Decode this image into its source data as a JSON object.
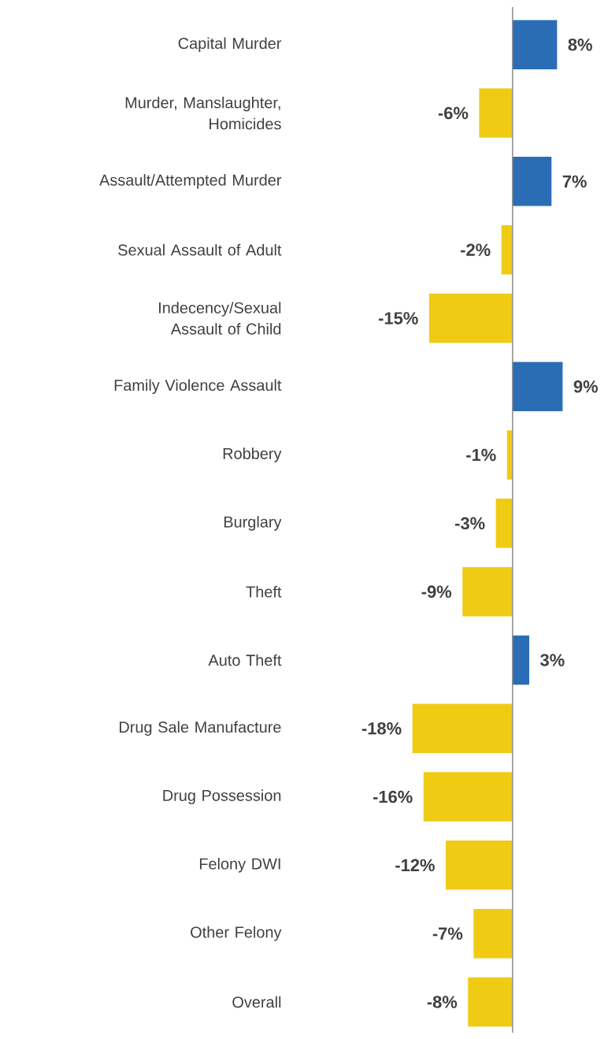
{
  "chart_data": {
    "type": "bar",
    "orientation": "horizontal",
    "categories": [
      "Capital Murder",
      "Murder, Manslaughter, Homicides",
      "Assault/Attempted Murder",
      "Sexual Assault of Adult",
      "Indecency/Sexual Assault of Child",
      "Family Violence Assault",
      "Robbery",
      "Burglary",
      "Theft",
      "Auto Theft",
      "Drug Sale Manufacture",
      "Drug Possession",
      "Felony DWI",
      "Other Felony",
      "Overall"
    ],
    "values": [
      8,
      -6,
      7,
      -2,
      -15,
      9,
      -1,
      -3,
      -9,
      3,
      -18,
      -16,
      -12,
      -7,
      -8
    ],
    "value_labels": [
      "8%",
      "-6%",
      "7%",
      "-2%",
      "-15%",
      "9%",
      "-1%",
      "-3%",
      "-9%",
      "3%",
      "-18%",
      "-16%",
      "-12%",
      "-7%",
      "-8%"
    ],
    "colors": [
      "#2a6db5",
      "#f0cb14",
      "#2a6db5",
      "#f0cb14",
      "#f0cb14",
      "#2a6db5",
      "#f0cb14",
      "#f0cb14",
      "#f0cb14",
      "#2a6db5",
      "#f0cb14",
      "#f0cb14",
      "#f0cb14",
      "#f0cb14",
      "#f0cb14"
    ],
    "tick_labels": "y"
  }
}
